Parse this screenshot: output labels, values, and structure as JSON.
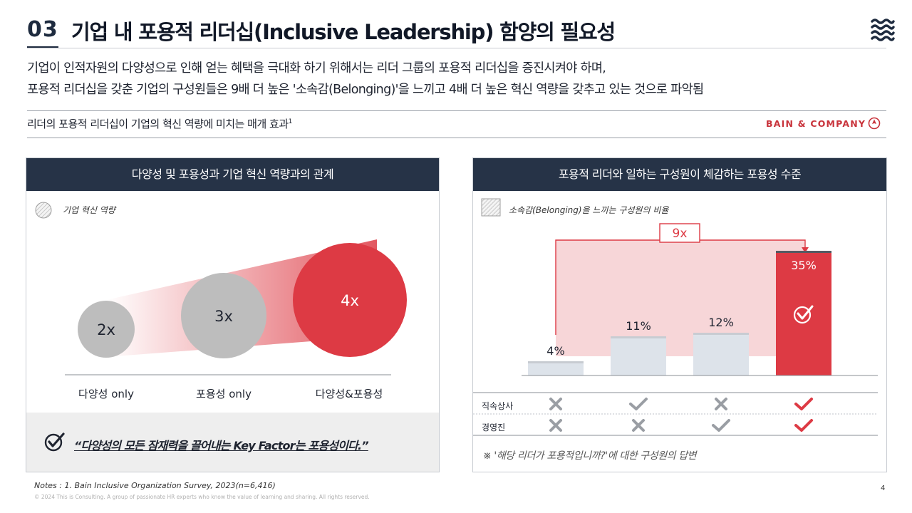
{
  "header": {
    "section_number": "03",
    "title": "기업 내 포용적 리더십(Inclusive Leadership) 함양의 필요성",
    "summary_line1": "기업이 인적자원의 다양성으로 인해 얻는 혜택을 극대화 하기 위해서는 리더 그룹의 포용적 리더십을 증진시켜야 하며,",
    "summary_line2": "포용적 리더십을 갖춘 기업의 구성원들은 9배 더 높은 '소속감(Belonging)'을 느끼고 4배 더 높은 혁신 역량을 갖추고 있는 것으로 파악됨",
    "subheading": "리더의 포용적 리더십이 기업의 혁신 역량에 미치는 매개 효과",
    "subheading_sup": "1",
    "source_brand": "BAIN & COMPANY"
  },
  "left_panel": {
    "title": "다양성 및 포용성과 기업 혁신 역량과의 관계",
    "legend": "기업 혁신 역량",
    "quote": "“다양성의 모든 잠재력을 끌어내는 Key Factor는 포용성이다.”"
  },
  "right_panel": {
    "title": "포용적 리더와 일하는 구성원이 체감하는 포용성 수준",
    "legend": "소속감(Belonging)을 느끼는 구성원의 비율",
    "multiplier_label": "9x",
    "rows": [
      {
        "label": "직속상사",
        "marks": [
          "cross",
          "check",
          "cross",
          "check"
        ]
      },
      {
        "label": "경영진",
        "marks": [
          "cross",
          "cross",
          "check",
          "check"
        ]
      }
    ],
    "footnote": "※ '해당 리더가 포용적입니까?'에 대한 구성원의 답변"
  },
  "chart_data": [
    {
      "type": "scatter",
      "title": "다양성 및 포용성과 기업 혁신 역량과의 관계",
      "legend": [
        "기업 혁신 역량"
      ],
      "categories": [
        "다양성 only",
        "포용성 only",
        "다양성&포용성"
      ],
      "values": [
        2,
        3,
        4
      ],
      "data_labels": [
        "2x",
        "3x",
        "4x"
      ],
      "encoding": "bubble size = 기업 혁신 역량 (multiple)"
    },
    {
      "type": "bar",
      "title": "포용적 리더와 일하는 구성원이 체감하는 포용성 수준",
      "legend": [
        "소속감(Belonging)을 느끼는 구성원의 비율"
      ],
      "categories": [
        "직속상사 ✗ / 경영진 ✗",
        "직속상사 ✓ / 경영진 ✗",
        "직속상사 ✗ / 경영진 ✓",
        "직속상사 ✓ / 경영진 ✓"
      ],
      "values": [
        4,
        11,
        12,
        35
      ],
      "data_labels": [
        "4%",
        "11%",
        "12%",
        "35%"
      ],
      "ylim": [
        0,
        40
      ],
      "annotation": "9x"
    }
  ],
  "footer": {
    "notes": "Notes : 1. Bain Inclusive Organization Survey, 2023(n=6,416)",
    "copyright": "© 2024 This is Consulting. A group of passionate HR experts who know the value of learning and sharing. All rights reserved.",
    "page": "4"
  },
  "colors": {
    "navy": "#263347",
    "red": "#dd3a44",
    "grey_bubble": "#bdbdbd",
    "light_bar": "#dde3ea"
  }
}
